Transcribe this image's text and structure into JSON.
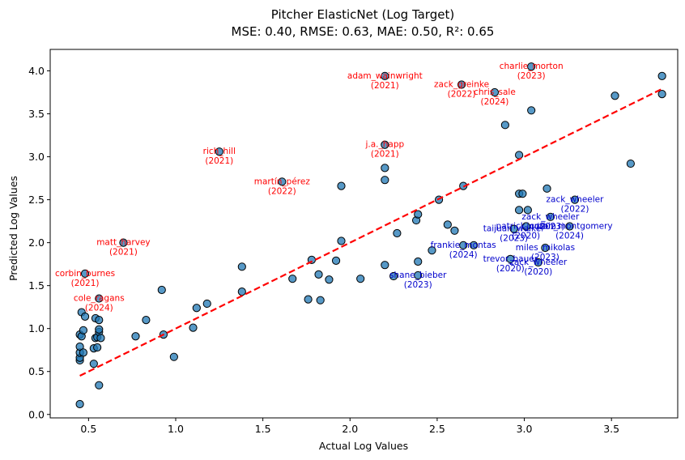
{
  "chart_data": {
    "type": "scatter",
    "title": "Pitcher ElasticNet (Log Target)",
    "subtitle": "MSE: 0.40, RMSE: 0.63, MAE: 0.50, R²: 0.65",
    "xlabel": "Actual Log Values",
    "ylabel": "Predicted Log Values",
    "xlim": [
      0.28,
      3.88
    ],
    "ylim": [
      -0.04,
      4.25
    ],
    "xticks": [
      "0.5",
      "1.0",
      "1.5",
      "2.0",
      "2.5",
      "3.0",
      "3.5"
    ],
    "xtick_values": [
      0.5,
      1.0,
      1.5,
      2.0,
      2.5,
      3.0,
      3.5
    ],
    "yticks": [
      "0.0",
      "0.5",
      "1.0",
      "1.5",
      "2.0",
      "2.5",
      "3.0",
      "3.5",
      "4.0"
    ],
    "ytick_values": [
      0.0,
      0.5,
      1.0,
      1.5,
      2.0,
      2.5,
      3.0,
      3.5,
      4.0
    ],
    "grid": false,
    "colors": {
      "points": "#1f77b4",
      "point_edge": "#000000",
      "reference_line": "#ff0000",
      "over_label": "#ff0000",
      "under_label": "#0000cc"
    },
    "reference_line": {
      "from": [
        0.45,
        0.45
      ],
      "to": [
        3.79,
        3.79
      ],
      "style": "dashed"
    },
    "points": [
      [
        0.45,
        0.12
      ],
      [
        0.45,
        0.63
      ],
      [
        0.45,
        0.66
      ],
      [
        0.45,
        0.72
      ],
      [
        0.45,
        0.79
      ],
      [
        0.45,
        0.93
      ],
      [
        0.46,
        1.19
      ],
      [
        0.46,
        0.91
      ],
      [
        0.47,
        0.98
      ],
      [
        0.47,
        0.72
      ],
      [
        0.48,
        1.64
      ],
      [
        0.48,
        1.14
      ],
      [
        0.53,
        0.59
      ],
      [
        0.53,
        0.77
      ],
      [
        0.54,
        1.12
      ],
      [
        0.54,
        0.89
      ],
      [
        0.55,
        0.9
      ],
      [
        0.55,
        0.78
      ],
      [
        0.56,
        0.34
      ],
      [
        0.56,
        0.96
      ],
      [
        0.56,
        0.99
      ],
      [
        0.56,
        1.35
      ],
      [
        0.56,
        1.1
      ],
      [
        0.57,
        0.89
      ],
      [
        0.7,
        2.0
      ],
      [
        0.77,
        0.91
      ],
      [
        0.83,
        1.1
      ],
      [
        0.92,
        1.45
      ],
      [
        0.93,
        0.93
      ],
      [
        0.99,
        0.67
      ],
      [
        1.1,
        1.01
      ],
      [
        1.12,
        1.24
      ],
      [
        1.18,
        1.29
      ],
      [
        1.25,
        3.06
      ],
      [
        1.38,
        1.72
      ],
      [
        1.38,
        1.43
      ],
      [
        1.61,
        2.71
      ],
      [
        1.67,
        1.58
      ],
      [
        1.76,
        1.34
      ],
      [
        1.78,
        1.8
      ],
      [
        1.82,
        1.63
      ],
      [
        1.83,
        1.33
      ],
      [
        1.88,
        1.57
      ],
      [
        1.92,
        1.79
      ],
      [
        1.95,
        2.66
      ],
      [
        1.95,
        2.02
      ],
      [
        2.06,
        1.58
      ],
      [
        2.2,
        3.94
      ],
      [
        2.2,
        3.14
      ],
      [
        2.2,
        2.87
      ],
      [
        2.2,
        2.73
      ],
      [
        2.2,
        1.74
      ],
      [
        2.25,
        1.61
      ],
      [
        2.27,
        2.11
      ],
      [
        2.38,
        2.26
      ],
      [
        2.39,
        2.33
      ],
      [
        2.39,
        1.78
      ],
      [
        2.39,
        1.62
      ],
      [
        2.47,
        1.91
      ],
      [
        2.51,
        2.5
      ],
      [
        2.56,
        2.21
      ],
      [
        2.6,
        2.14
      ],
      [
        2.64,
        3.84
      ],
      [
        2.65,
        2.66
      ],
      [
        2.65,
        1.97
      ],
      [
        2.71,
        1.97
      ],
      [
        2.83,
        3.75
      ],
      [
        2.89,
        3.37
      ],
      [
        2.92,
        1.81
      ],
      [
        2.94,
        2.16
      ],
      [
        2.97,
        3.02
      ],
      [
        2.97,
        2.57
      ],
      [
        2.97,
        2.38
      ],
      [
        2.99,
        2.57
      ],
      [
        3.01,
        2.19
      ],
      [
        3.02,
        2.38
      ],
      [
        3.04,
        4.05
      ],
      [
        3.04,
        3.54
      ],
      [
        3.08,
        1.77
      ],
      [
        3.12,
        1.94
      ],
      [
        3.13,
        2.63
      ],
      [
        3.15,
        2.3
      ],
      [
        3.26,
        2.19
      ],
      [
        3.29,
        2.5
      ],
      [
        3.52,
        3.71
      ],
      [
        3.61,
        2.92
      ],
      [
        3.79,
        3.94
      ],
      [
        3.79,
        3.73
      ]
    ],
    "annotations": [
      {
        "name": "rich_hill",
        "year": "(2021)",
        "x": 1.25,
        "y": 3.06,
        "type": "over"
      },
      {
        "name": "martín_pérez",
        "year": "(2022)",
        "x": 1.61,
        "y": 2.71,
        "type": "over"
      },
      {
        "name": "matt_harvey",
        "year": "(2021)",
        "x": 0.7,
        "y": 2.0,
        "type": "over"
      },
      {
        "name": "corbin_burnes",
        "year": "(2021)",
        "x": 0.48,
        "y": 1.64,
        "type": "over"
      },
      {
        "name": "cole_ragans",
        "year": "(2024)",
        "x": 0.56,
        "y": 1.35,
        "type": "over"
      },
      {
        "name": "adam_wainwright",
        "year": "(2021)",
        "x": 2.2,
        "y": 3.94,
        "type": "over"
      },
      {
        "name": "j.a._happ",
        "year": "(2021)",
        "x": 2.2,
        "y": 3.14,
        "type": "over"
      },
      {
        "name": "zack_greinke",
        "year": "(2022)",
        "x": 2.64,
        "y": 3.84,
        "type": "over"
      },
      {
        "name": "chris_sale",
        "year": "(2024)",
        "x": 2.83,
        "y": 3.75,
        "type": "over"
      },
      {
        "name": "charlie_morton",
        "year": "(2023)",
        "x": 3.04,
        "y": 4.05,
        "type": "over"
      },
      {
        "name": "zack_wheeler",
        "year": "(2022)",
        "x": 3.29,
        "y": 2.5,
        "type": "under"
      },
      {
        "name": "zack_wheeler",
        "year": "(2023)",
        "x": 3.15,
        "y": 2.3,
        "type": "under"
      },
      {
        "name": "patrick_corbin",
        "year": "(2020)",
        "x": 3.01,
        "y": 2.19,
        "type": "under"
      },
      {
        "name": "jordan_montgomery",
        "year": "(2024)",
        "x": 3.26,
        "y": 2.19,
        "type": "under"
      },
      {
        "name": "taijuan_walker",
        "year": "(2023)",
        "x": 2.94,
        "y": 2.16,
        "type": "under"
      },
      {
        "name": "frankie_montas",
        "year": "(2024)",
        "x": 2.65,
        "y": 1.97,
        "type": "under"
      },
      {
        "name": "miles_mikolas",
        "year": "(2023)",
        "x": 3.12,
        "y": 1.94,
        "type": "under"
      },
      {
        "name": "trevor_bauer",
        "year": "(2020)",
        "x": 2.92,
        "y": 1.81,
        "type": "under"
      },
      {
        "name": "zack_wheeler",
        "year": "(2020)",
        "x": 3.08,
        "y": 1.77,
        "type": "under"
      },
      {
        "name": "shane_bieber",
        "year": "(2023)",
        "x": 2.39,
        "y": 1.62,
        "type": "under"
      }
    ]
  }
}
